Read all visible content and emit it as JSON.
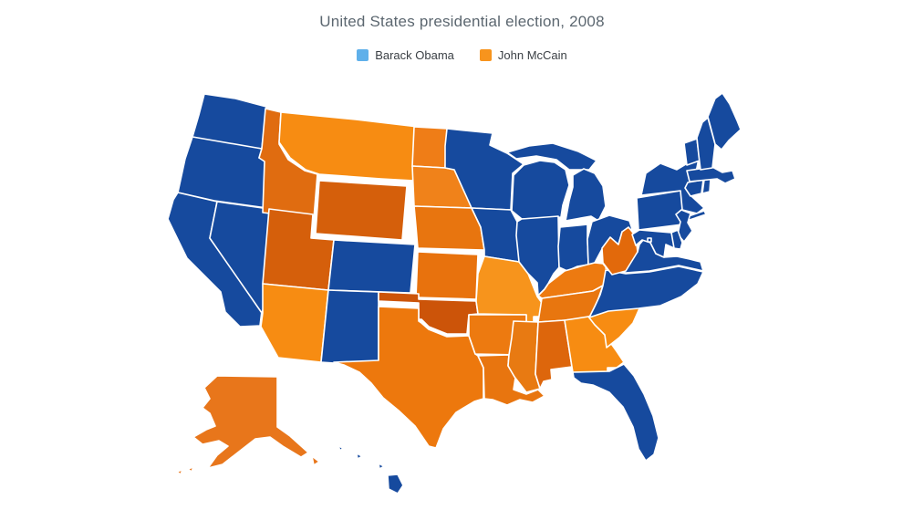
{
  "title": "United States presidential election, 2008",
  "legend": {
    "items": [
      {
        "label": "Barack Obama",
        "color": "#5FB0EA"
      },
      {
        "label": "John McCain",
        "color": "#F7941D"
      }
    ]
  },
  "chart_data": {
    "type": "choropleth-map",
    "title": "United States presidential election, 2008",
    "legend_position": "top-center",
    "series": [
      {
        "name": "Barack Obama",
        "color": "#5FB0EA"
      },
      {
        "name": "John McCain",
        "color": "#F7941D"
      }
    ],
    "obama_fill": "#164A9E",
    "states": [
      {
        "id": "WA",
        "name": "Washington",
        "winner": "Barack Obama",
        "color": "#164A9E"
      },
      {
        "id": "OR",
        "name": "Oregon",
        "winner": "Barack Obama",
        "color": "#164A9E"
      },
      {
        "id": "CA",
        "name": "California",
        "winner": "Barack Obama",
        "color": "#164A9E"
      },
      {
        "id": "NV",
        "name": "Nevada",
        "winner": "Barack Obama",
        "color": "#164A9E"
      },
      {
        "id": "ID",
        "name": "Idaho",
        "winner": "John McCain",
        "color": "#E06C10"
      },
      {
        "id": "MT",
        "name": "Montana",
        "winner": "John McCain",
        "color": "#F78C12"
      },
      {
        "id": "WY",
        "name": "Wyoming",
        "winner": "John McCain",
        "color": "#D55F0B"
      },
      {
        "id": "UT",
        "name": "Utah",
        "winner": "John McCain",
        "color": "#D55F0B"
      },
      {
        "id": "CO",
        "name": "Colorado",
        "winner": "Barack Obama",
        "color": "#164A9E"
      },
      {
        "id": "AZ",
        "name": "Arizona",
        "winner": "John McCain",
        "color": "#F78C12"
      },
      {
        "id": "NM",
        "name": "New Mexico",
        "winner": "Barack Obama",
        "color": "#164A9E"
      },
      {
        "id": "ND",
        "name": "North Dakota",
        "winner": "John McCain",
        "color": "#EF7D17"
      },
      {
        "id": "SD",
        "name": "South Dakota",
        "winner": "John McCain",
        "color": "#F0821A"
      },
      {
        "id": "NE",
        "name": "Nebraska",
        "winner": "John McCain",
        "color": "#E8750F"
      },
      {
        "id": "KS",
        "name": "Kansas",
        "winner": "John McCain",
        "color": "#E8720D"
      },
      {
        "id": "OK",
        "name": "Oklahoma",
        "winner": "John McCain",
        "color": "#CC5409"
      },
      {
        "id": "TX",
        "name": "Texas",
        "winner": "John McCain",
        "color": "#ED780D"
      },
      {
        "id": "MN",
        "name": "Minnesota",
        "winner": "Barack Obama",
        "color": "#164A9E"
      },
      {
        "id": "IA",
        "name": "Iowa",
        "winner": "Barack Obama",
        "color": "#164A9E"
      },
      {
        "id": "MO",
        "name": "Missouri",
        "winner": "John McCain",
        "color": "#F7941C"
      },
      {
        "id": "AR",
        "name": "Arkansas",
        "winner": "John McCain",
        "color": "#ED7A10"
      },
      {
        "id": "LA",
        "name": "Louisiana",
        "winner": "John McCain",
        "color": "#E8750F"
      },
      {
        "id": "WI",
        "name": "Wisconsin",
        "winner": "Barack Obama",
        "color": "#164A9E"
      },
      {
        "id": "IL",
        "name": "Illinois",
        "winner": "Barack Obama",
        "color": "#164A9E"
      },
      {
        "id": "MI",
        "name": "Michigan",
        "winner": "Barack Obama",
        "color": "#164A9E"
      },
      {
        "id": "IN",
        "name": "Indiana",
        "winner": "Barack Obama",
        "color": "#164A9E"
      },
      {
        "id": "OH",
        "name": "Ohio",
        "winner": "Barack Obama",
        "color": "#164A9E"
      },
      {
        "id": "KY",
        "name": "Kentucky",
        "winner": "John McCain",
        "color": "#ED7A10"
      },
      {
        "id": "TN",
        "name": "Tennessee",
        "winner": "John McCain",
        "color": "#E8760F"
      },
      {
        "id": "MS",
        "name": "Mississippi",
        "winner": "John McCain",
        "color": "#E87A12"
      },
      {
        "id": "AL",
        "name": "Alabama",
        "winner": "John McCain",
        "color": "#DD660C"
      },
      {
        "id": "GA",
        "name": "Georgia",
        "winner": "John McCain",
        "color": "#F78C12"
      },
      {
        "id": "SC",
        "name": "South Carolina",
        "winner": "John McCain",
        "color": "#F78C12"
      },
      {
        "id": "NC",
        "name": "North Carolina",
        "winner": "Barack Obama",
        "color": "#164A9E"
      },
      {
        "id": "VA",
        "name": "Virginia",
        "winner": "Barack Obama",
        "color": "#164A9E"
      },
      {
        "id": "WV",
        "name": "West Virginia",
        "winner": "John McCain",
        "color": "#E2690B"
      },
      {
        "id": "FL",
        "name": "Florida",
        "winner": "Barack Obama",
        "color": "#164A9E"
      },
      {
        "id": "PA",
        "name": "Pennsylvania",
        "winner": "Barack Obama",
        "color": "#164A9E"
      },
      {
        "id": "NY",
        "name": "New York",
        "winner": "Barack Obama",
        "color": "#164A9E"
      },
      {
        "id": "NJ",
        "name": "New Jersey",
        "winner": "Barack Obama",
        "color": "#164A9E"
      },
      {
        "id": "DE",
        "name": "Delaware",
        "winner": "Barack Obama",
        "color": "#164A9E"
      },
      {
        "id": "MD",
        "name": "Maryland",
        "winner": "Barack Obama",
        "color": "#164A9E"
      },
      {
        "id": "DC",
        "name": "District of Columbia",
        "winner": "Barack Obama",
        "color": "#164A9E"
      },
      {
        "id": "CT",
        "name": "Connecticut",
        "winner": "Barack Obama",
        "color": "#164A9E"
      },
      {
        "id": "RI",
        "name": "Rhode Island",
        "winner": "Barack Obama",
        "color": "#164A9E"
      },
      {
        "id": "MA",
        "name": "Massachusetts",
        "winner": "Barack Obama",
        "color": "#164A9E"
      },
      {
        "id": "VT",
        "name": "Vermont",
        "winner": "Barack Obama",
        "color": "#164A9E"
      },
      {
        "id": "NH",
        "name": "New Hampshire",
        "winner": "Barack Obama",
        "color": "#164A9E"
      },
      {
        "id": "ME",
        "name": "Maine",
        "winner": "Barack Obama",
        "color": "#164A9E"
      },
      {
        "id": "AK",
        "name": "Alaska",
        "winner": "John McCain",
        "color": "#E8761B"
      },
      {
        "id": "HI",
        "name": "Hawaii",
        "winner": "Barack Obama",
        "color": "#164A9E"
      }
    ]
  }
}
